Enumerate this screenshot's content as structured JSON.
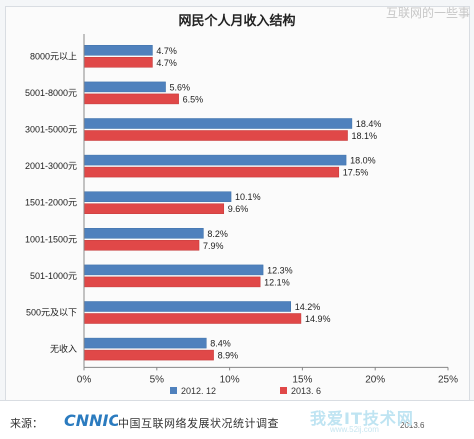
{
  "watermark_top": "互联网的一些事",
  "source_label": "来源：",
  "logo_text": "CNNIC",
  "footer_text": "中国互联网络发展状况统计调查",
  "footer_date": "2013.6",
  "site_watermark": "我爱IT技术网",
  "site_url": "www.52ij.com",
  "colors": {
    "series_2012": "#4f81bd",
    "series_2013": "#e04848"
  },
  "chart_data": {
    "type": "bar",
    "orientation": "horizontal",
    "title": "网民个人月收入结构",
    "categories": [
      "8000元以上",
      "5001-8000元",
      "3001-5000元",
      "2001-3000元",
      "1501-2000元",
      "1001-1500元",
      "501-1000元",
      "500元及以下",
      "无收入"
    ],
    "series": [
      {
        "name": "2012. 12",
        "values": [
          4.7,
          5.6,
          18.4,
          18.0,
          10.1,
          8.2,
          12.3,
          14.2,
          8.4
        ],
        "labels": [
          "4.7%",
          "5.6%",
          "18.4%",
          "18.0%",
          "10.1%",
          "8.2%",
          "12.3%",
          "14.2%",
          "8.4%"
        ]
      },
      {
        "name": "2013. 6",
        "values": [
          4.7,
          6.5,
          18.1,
          17.5,
          9.6,
          7.9,
          12.1,
          14.9,
          8.9
        ],
        "labels": [
          "4.7%",
          "6.5%",
          "18.1%",
          "17.5%",
          "9.6%",
          "7.9%",
          "12.1%",
          "14.9%",
          "8.9%"
        ]
      }
    ],
    "xlim": [
      0,
      25
    ],
    "xticks": [
      "0%",
      "5%",
      "10%",
      "15%",
      "20%",
      "25%"
    ],
    "grid": false,
    "legend": "bottom"
  }
}
